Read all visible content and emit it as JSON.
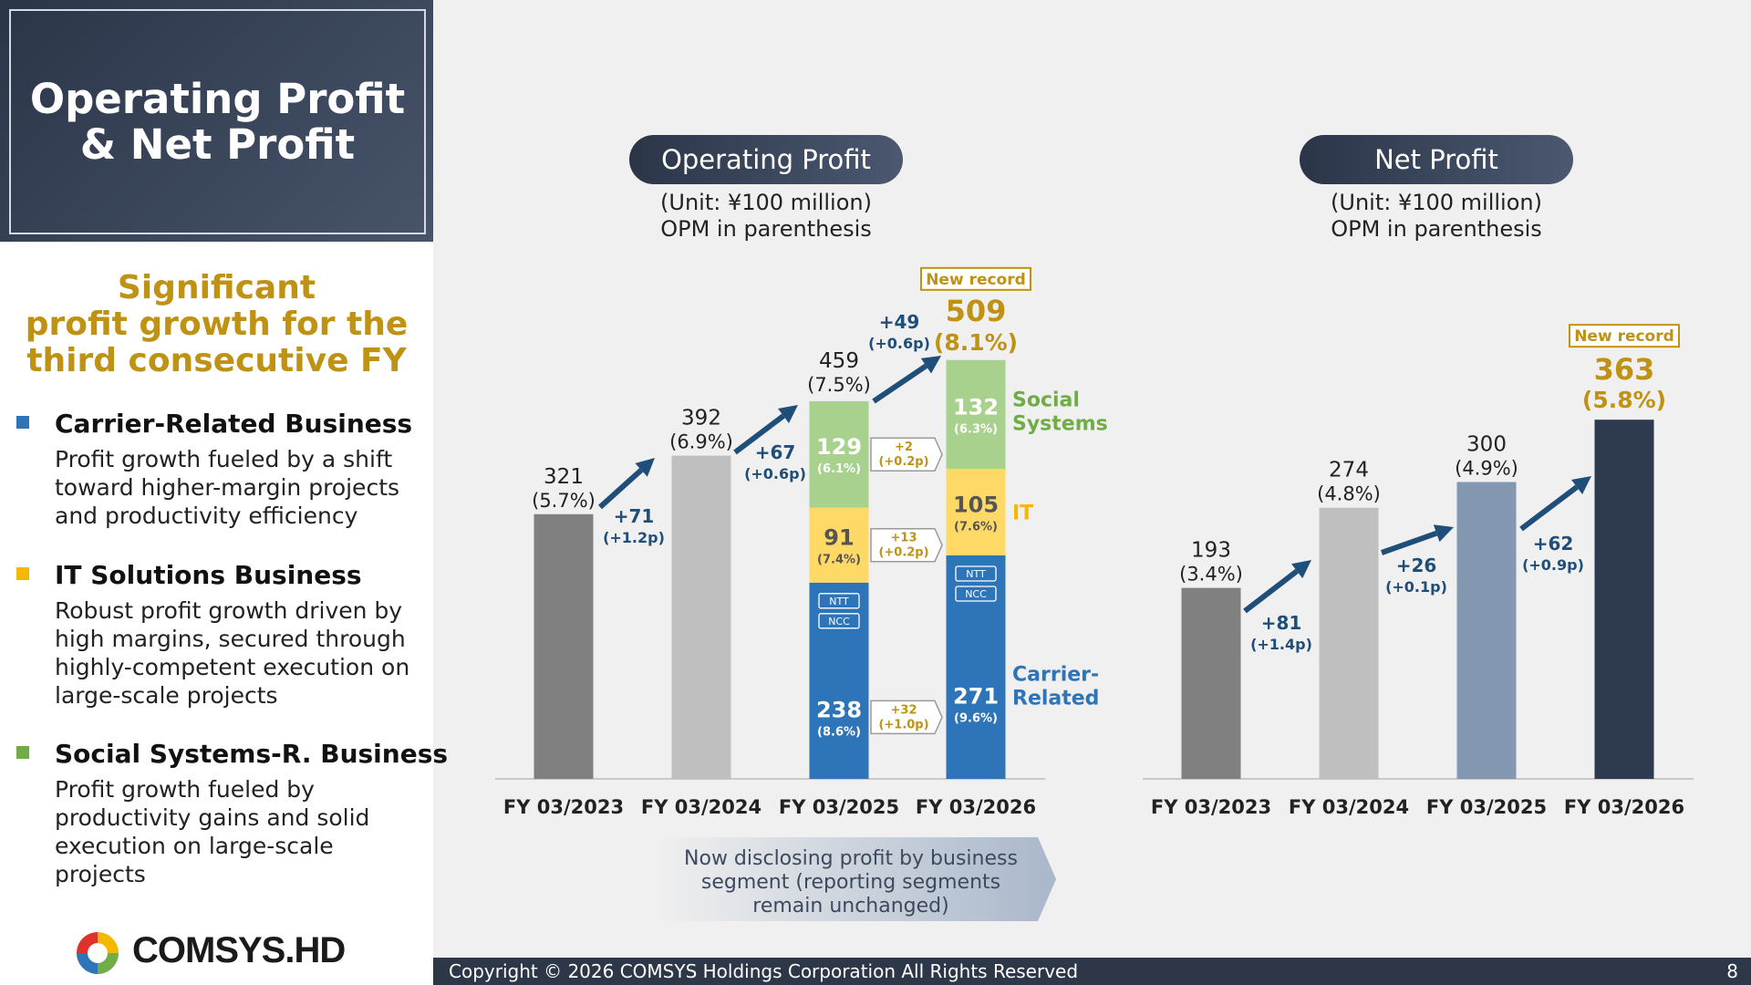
{
  "title": "Operating Profit\n& Net Profit",
  "headline": "Significant\nprofit growth for the\nthird consecutive FY",
  "businesses": [
    {
      "title": "Carrier-Related Business",
      "desc": "Profit growth fueled by a shift\ntoward higher-margin projects\nand productivity efficiency",
      "color": "#2e74b8"
    },
    {
      "title": "IT Solutions Business",
      "desc": "Robust profit growth driven by\nhigh margins, secured through\nhighly-competent execution on\nlarge-scale projects",
      "color": "#f5b800"
    },
    {
      "title": "Social Systems-R. Business",
      "desc": "Profit growth fueled by\nproductivity gains and solid\nexecution on large-scale\nprojects",
      "color": "#70ad47"
    }
  ],
  "logo": {
    "text": "COMSYS.HD"
  },
  "footer": {
    "copyright": "Copyright © 2026 COMSYS Holdings Corporation All Rights Reserved",
    "page": "8"
  },
  "chart_data": [
    {
      "type": "bar",
      "title": "Operating Profit",
      "unit_note": "(Unit: ¥100 million)\nOPM in parenthesis",
      "categories": [
        "FY 03/2023",
        "FY 03/2024",
        "FY 03/2025",
        "FY 03/2026"
      ],
      "values": [
        321,
        392,
        459,
        509
      ],
      "margins": [
        "(5.7%)",
        "(6.9%)",
        "(7.5%)",
        "(8.1%)"
      ],
      "bar_colors": [
        "#808080",
        "#bfbfbf",
        null,
        null
      ],
      "changes": [
        {
          "value": "+71",
          "margin": "(+1.2p)"
        },
        {
          "value": "+67",
          "margin": "(+0.6p)"
        },
        {
          "value": "+49",
          "margin": "(+0.6p)"
        }
      ],
      "badge": "New record",
      "segment_series": [
        {
          "name": "Carrier-\nRelated",
          "color": "#2e74b8",
          "values": [
            null,
            null,
            238,
            271
          ],
          "margins": [
            null,
            null,
            "(8.6%)",
            "(9.6%)"
          ],
          "change": {
            "value": "+32",
            "margin": "(+1.0p)"
          }
        },
        {
          "name": "IT",
          "color": "#ffd966",
          "values": [
            null,
            null,
            91,
            105
          ],
          "margins": [
            null,
            null,
            "(7.4%)",
            "(7.6%)"
          ],
          "change": {
            "value": "+13",
            "margin": "(+0.2p)"
          }
        },
        {
          "name": "Social\nSystems",
          "color": "#a9d18e",
          "values": [
            null,
            null,
            129,
            132
          ],
          "margins": [
            null,
            null,
            "(6.1%)",
            "(6.3%)"
          ],
          "change": {
            "value": "+2",
            "margin": "(+0.2p)"
          }
        }
      ],
      "tags": [
        "NTT",
        "NCC"
      ],
      "note": "Now disclosing profit by business\nsegment (reporting segments\nremain unchanged)"
    },
    {
      "type": "bar",
      "title": "Net Profit",
      "unit_note": "(Unit: ¥100 million)\nOPM in parenthesis",
      "categories": [
        "FY 03/2023",
        "FY 03/2024",
        "FY 03/2025",
        "FY 03/2026"
      ],
      "values": [
        193,
        274,
        300,
        363
      ],
      "margins": [
        "(3.4%)",
        "(4.8%)",
        "(4.9%)",
        "(5.8%)"
      ],
      "bar_colors": [
        "#808080",
        "#bfbfbf",
        "#8497b0",
        "#2e3a4f"
      ],
      "changes": [
        {
          "value": "+81",
          "margin": "(+1.4p)"
        },
        {
          "value": "+26",
          "margin": "(+0.1p)"
        },
        {
          "value": "+62",
          "margin": "(+0.9p)"
        }
      ],
      "badge": "New record"
    }
  ]
}
